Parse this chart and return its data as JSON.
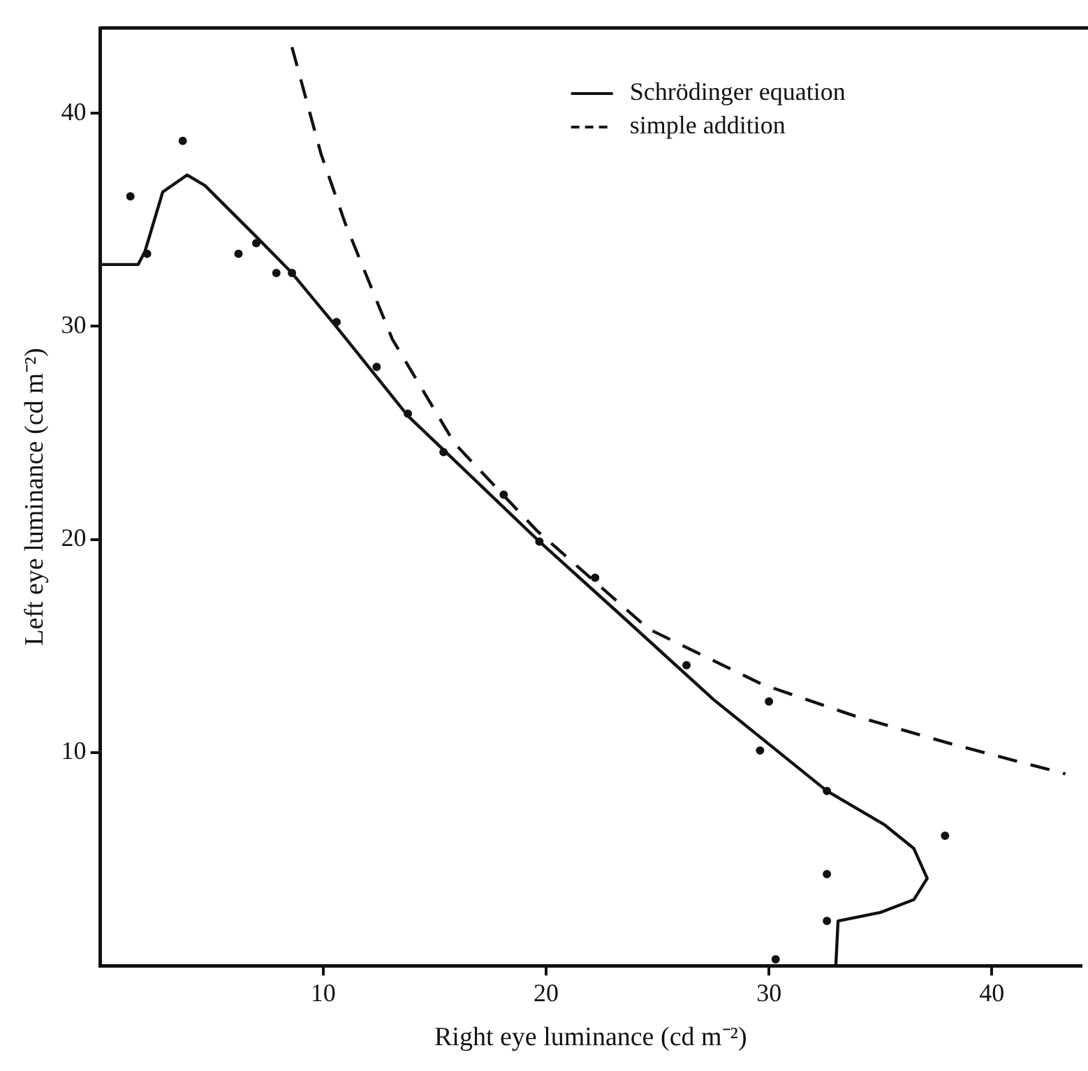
{
  "chart_data": {
    "type": "line",
    "xlabel": "Right eye luminance (cd m⁻²)",
    "ylabel": "Left eye luminance (cd m⁻²)",
    "xlim": [
      0,
      44
    ],
    "ylim": [
      0,
      44
    ],
    "xticks": [
      10,
      20,
      30,
      40
    ],
    "yticks": [
      10,
      20,
      30,
      40
    ],
    "grid": false,
    "legend": "top right",
    "series": [
      {
        "name": "Schrödinger equation",
        "type": "line",
        "line_style": "solid",
        "marker": "none",
        "color": "#111111",
        "x": [
          0,
          1.7,
          2.0,
          2.8,
          3.9,
          4.7,
          7.0,
          8.6,
          10.5,
          13.8,
          15.3,
          19.7,
          23.3,
          27.5,
          32.6,
          35.2,
          36.5,
          37.1,
          36.5,
          35.0,
          33.1,
          33.0
        ],
        "values": [
          32.9,
          32.9,
          33.5,
          36.3,
          37.1,
          36.6,
          34.2,
          32.5,
          30.1,
          25.8,
          24.3,
          19.9,
          16.5,
          12.5,
          8.2,
          6.6,
          5.5,
          4.1,
          3.1,
          2.5,
          2.1,
          0
        ]
      },
      {
        "name": "simple addition",
        "type": "line",
        "line_style": "dashed",
        "marker": "none",
        "color": "#111111",
        "x": [
          8.6,
          9.9,
          11.0,
          13.1,
          15.9,
          19.6,
          24.6,
          29.7,
          33.9,
          38.2,
          43.3
        ],
        "values": [
          43.1,
          38.1,
          34.8,
          29.4,
          24.5,
          20.4,
          15.8,
          13.2,
          11.7,
          10.4,
          9.0
        ]
      },
      {
        "type": "scatter",
        "marker": "circle",
        "color": "#111111",
        "x": [
          1.35,
          2.1,
          3.7,
          6.2,
          7.0,
          7.9,
          8.6,
          10.6,
          12.4,
          13.8,
          15.4,
          18.1,
          19.7,
          22.2,
          26.3,
          30.0,
          29.6,
          32.6,
          37.9,
          32.6,
          32.6,
          30.3
        ],
        "values": [
          36.1,
          33.4,
          38.7,
          33.4,
          33.9,
          32.5,
          32.5,
          30.2,
          28.1,
          25.9,
          24.1,
          22.1,
          19.9,
          18.2,
          14.1,
          12.4,
          10.1,
          8.2,
          6.1,
          4.3,
          2.1,
          0.3
        ]
      }
    ]
  }
}
